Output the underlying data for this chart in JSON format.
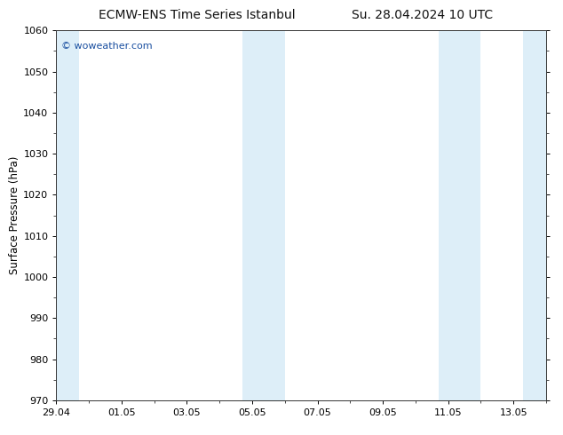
{
  "title_left": "ECMW-ENS Time Series Istanbul",
  "title_right": "Su. 28.04.2024 10 UTC",
  "ylabel": "Surface Pressure (hPa)",
  "ylim": [
    970,
    1060
  ],
  "yticks": [
    970,
    980,
    990,
    1000,
    1010,
    1020,
    1030,
    1040,
    1050,
    1060
  ],
  "xtick_labels": [
    "29.04",
    "01.05",
    "03.05",
    "05.05",
    "07.05",
    "09.05",
    "11.05",
    "13.05"
  ],
  "xtick_positions": [
    0,
    2,
    4,
    6,
    8,
    10,
    12,
    14
  ],
  "x_total_days": 15,
  "shaded_bands": [
    {
      "xmin": -0.05,
      "xmax": 0.7,
      "color": "#ddeef8"
    },
    {
      "xmin": 5.7,
      "xmax": 6.3,
      "color": "#ddeef8"
    },
    {
      "xmin": 6.3,
      "xmax": 7.0,
      "color": "#ddeef8"
    },
    {
      "xmin": 11.7,
      "xmax": 12.3,
      "color": "#ddeef8"
    },
    {
      "xmin": 12.3,
      "xmax": 13.0,
      "color": "#ddeef8"
    },
    {
      "xmin": 14.3,
      "xmax": 15.05,
      "color": "#ddeef8"
    }
  ],
  "watermark_text": "© woweather.com",
  "watermark_color": "#1a4fa0",
  "bg_color": "#ffffff",
  "plot_bg_color": "#ffffff",
  "title_fontsize": 10,
  "label_fontsize": 8.5,
  "tick_fontsize": 8
}
